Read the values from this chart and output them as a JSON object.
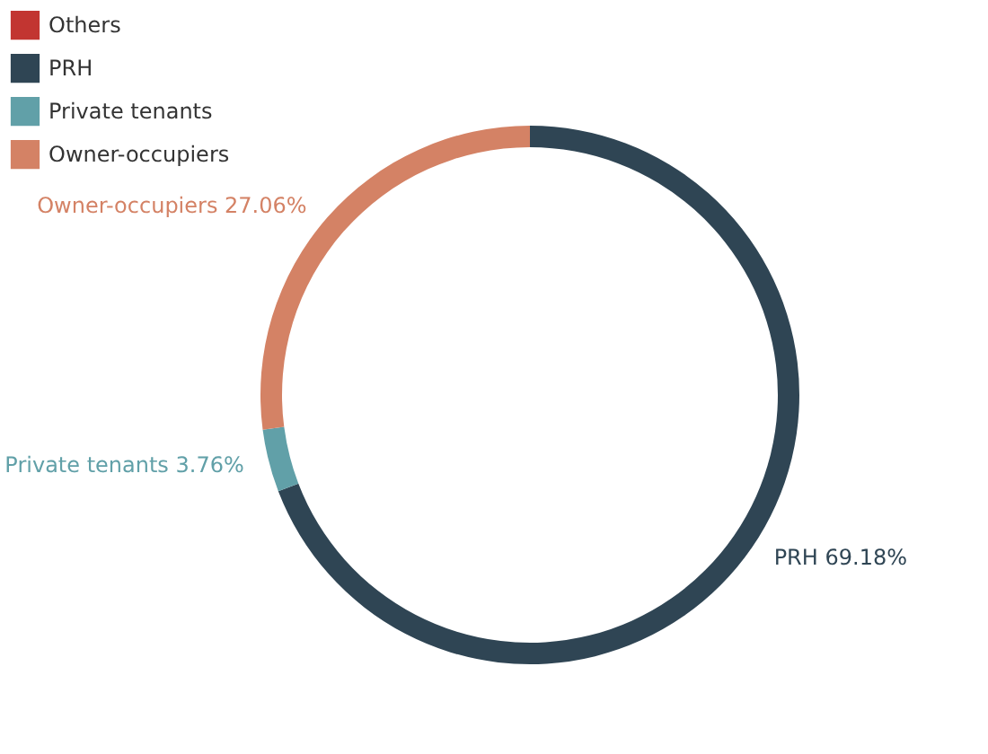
{
  "chart_data": {
    "type": "donut",
    "categories": [
      "Others",
      "PRH",
      "Private tenants",
      "Owner-occupiers"
    ],
    "values": [
      0,
      69.18,
      3.76,
      27.06
    ],
    "colors": [
      "#c23531",
      "#2f4554",
      "#61a0a8",
      "#d48265"
    ],
    "value_labels": [
      null,
      "PRH 69.18%",
      "Private tenants 3.76%",
      "Owner-occupiers 27.06%"
    ],
    "legend": "top left"
  }
}
